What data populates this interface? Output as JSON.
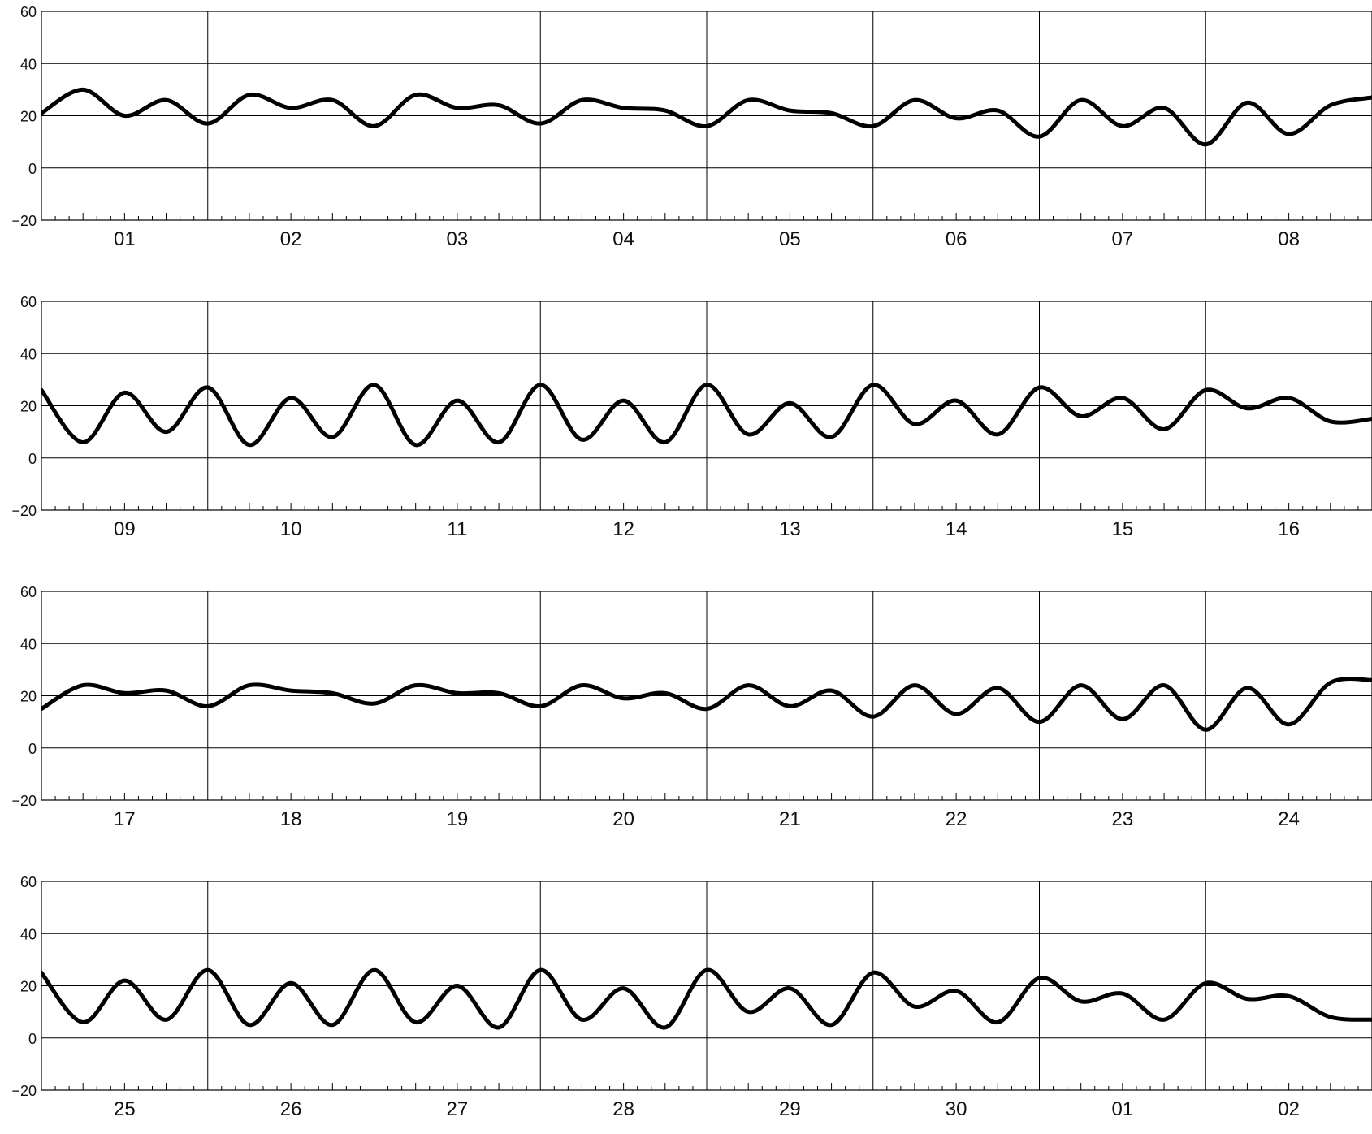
{
  "chart_data": [
    {
      "type": "line",
      "ylim": [
        -20,
        60
      ],
      "yticks": [
        -20,
        0,
        20,
        40,
        60
      ],
      "day_labels": [
        "01",
        "02",
        "03",
        "04",
        "05",
        "06",
        "07",
        "08"
      ],
      "grid": true,
      "series": [
        {
          "x_days": [
            0,
            0.25,
            0.5,
            0.75,
            1,
            1.25,
            1.5,
            1.75,
            2,
            2.25,
            2.5,
            2.75,
            3,
            3.25,
            3.5,
            3.75,
            4,
            4.25,
            4.5,
            4.75,
            5,
            5.25,
            5.5,
            5.75,
            6,
            6.25,
            6.5,
            6.75,
            7,
            7.25,
            7.5,
            7.75,
            8
          ],
          "values": [
            21,
            30,
            20,
            26,
            17,
            28,
            23,
            26,
            16,
            28,
            23,
            24,
            17,
            26,
            23,
            22,
            16,
            26,
            22,
            21,
            16,
            26,
            19,
            22,
            12,
            26,
            16,
            23,
            9,
            25,
            13,
            24,
            27
          ]
        }
      ]
    },
    {
      "type": "line",
      "ylim": [
        -20,
        60
      ],
      "yticks": [
        -20,
        0,
        20,
        40,
        60
      ],
      "day_labels": [
        "09",
        "10",
        "11",
        "12",
        "13",
        "14",
        "15",
        "16"
      ],
      "grid": true,
      "series": [
        {
          "x_days": [
            0,
            0.25,
            0.5,
            0.75,
            1,
            1.25,
            1.5,
            1.75,
            2,
            2.25,
            2.5,
            2.75,
            3,
            3.25,
            3.5,
            3.75,
            4,
            4.25,
            4.5,
            4.75,
            5,
            5.25,
            5.5,
            5.75,
            6,
            6.25,
            6.5,
            6.75,
            7,
            7.25,
            7.5,
            7.75,
            8
          ],
          "values": [
            26,
            6,
            25,
            10,
            27,
            5,
            23,
            8,
            28,
            5,
            22,
            6,
            28,
            7,
            22,
            6,
            28,
            9,
            21,
            8,
            28,
            13,
            22,
            9,
            27,
            16,
            23,
            11,
            26,
            19,
            23,
            14,
            15
          ]
        }
      ]
    },
    {
      "type": "line",
      "ylim": [
        -20,
        60
      ],
      "yticks": [
        -20,
        0,
        20,
        40,
        60
      ],
      "day_labels": [
        "17",
        "18",
        "19",
        "20",
        "21",
        "22",
        "23",
        "24"
      ],
      "grid": true,
      "series": [
        {
          "x_days": [
            0,
            0.25,
            0.5,
            0.75,
            1,
            1.25,
            1.5,
            1.75,
            2,
            2.25,
            2.5,
            2.75,
            3,
            3.25,
            3.5,
            3.75,
            4,
            4.25,
            4.5,
            4.75,
            5,
            5.25,
            5.5,
            5.75,
            6,
            6.25,
            6.5,
            6.75,
            7,
            7.25,
            7.5,
            7.75,
            8
          ],
          "values": [
            15,
            24,
            21,
            22,
            16,
            24,
            22,
            21,
            17,
            24,
            21,
            21,
            16,
            24,
            19,
            21,
            15,
            24,
            16,
            22,
            12,
            24,
            13,
            23,
            10,
            24,
            11,
            24,
            7,
            23,
            9,
            25,
            26
          ]
        }
      ]
    },
    {
      "type": "line",
      "ylim": [
        -20,
        60
      ],
      "yticks": [
        -20,
        0,
        20,
        40,
        60
      ],
      "day_labels": [
        "25",
        "26",
        "27",
        "28",
        "29",
        "30",
        "01",
        "02"
      ],
      "grid": true,
      "series": [
        {
          "x_days": [
            0,
            0.25,
            0.5,
            0.75,
            1,
            1.25,
            1.5,
            1.75,
            2,
            2.25,
            2.5,
            2.75,
            3,
            3.25,
            3.5,
            3.75,
            4,
            4.25,
            4.5,
            4.75,
            5,
            5.25,
            5.5,
            5.75,
            6,
            6.25,
            6.5,
            6.75,
            7,
            7.25,
            7.5,
            7.75,
            8
          ],
          "values": [
            25,
            6,
            22,
            7,
            26,
            5,
            21,
            5,
            26,
            6,
            20,
            4,
            26,
            7,
            19,
            4,
            26,
            10,
            19,
            5,
            25,
            12,
            18,
            6,
            23,
            14,
            17,
            7,
            21,
            15,
            16,
            8,
            7
          ]
        }
      ]
    }
  ]
}
